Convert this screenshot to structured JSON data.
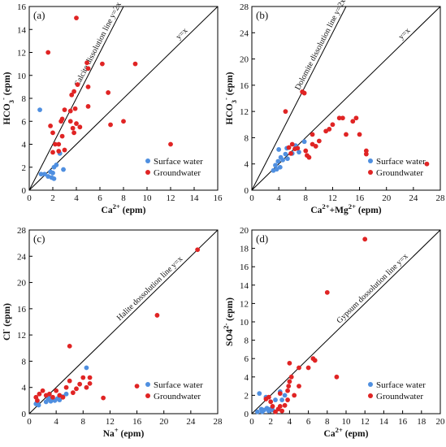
{
  "colors": {
    "surface": "#4f8fe0",
    "ground": "#e02424",
    "axis": "#000000"
  },
  "chart_data": [
    {
      "type": "scatter",
      "panel": "(a)",
      "xlabel": "Ca²⁺ (epm)",
      "ylabel": "HCO₃⁻ (epm)",
      "xlim": [
        0,
        16
      ],
      "ylim": [
        0,
        16
      ],
      "xticks": [
        0,
        2,
        4,
        6,
        8,
        10,
        12,
        14,
        16
      ],
      "yticks": [
        0,
        2,
        4,
        6,
        8,
        10,
        12,
        14,
        16
      ],
      "reference_lines": [
        {
          "label": "Calcite dissolution line y=2x",
          "slope": 2
        },
        {
          "label": "y=x",
          "slope": 1
        }
      ],
      "legend_position": "bottom-right",
      "series": [
        {
          "name": "Surface water",
          "color_key": "surface",
          "points": [
            [
              0.9,
              7.0
            ],
            [
              1.0,
              1.4
            ],
            [
              1.3,
              1.4
            ],
            [
              1.6,
              1.2
            ],
            [
              1.8,
              1.6
            ],
            [
              1.9,
              1.1
            ],
            [
              2.0,
              1.5
            ],
            [
              2.1,
              1.0
            ],
            [
              2.1,
              2.0
            ],
            [
              2.3,
              2.2
            ],
            [
              2.6,
              3.2
            ],
            [
              2.9,
              1.8
            ]
          ]
        },
        {
          "name": "Groundwater",
          "color_key": "ground",
          "points": [
            [
              1.6,
              12.0
            ],
            [
              1.8,
              5.6
            ],
            [
              2.0,
              5.0
            ],
            [
              2.0,
              3.3
            ],
            [
              2.2,
              4.0
            ],
            [
              2.5,
              4.0
            ],
            [
              2.5,
              3.4
            ],
            [
              2.7,
              6.0
            ],
            [
              2.8,
              6.2
            ],
            [
              2.8,
              4.7
            ],
            [
              3.0,
              7.0
            ],
            [
              3.0,
              3.5
            ],
            [
              3.5,
              6.9
            ],
            [
              3.5,
              6.0
            ],
            [
              3.6,
              8.3
            ],
            [
              3.7,
              5.4
            ],
            [
              3.8,
              8.6
            ],
            [
              3.8,
              5.0
            ],
            [
              3.9,
              7.1
            ],
            [
              4.0,
              15.0
            ],
            [
              4.0,
              5.8
            ],
            [
              4.1,
              9.2
            ],
            [
              4.3,
              5.5
            ],
            [
              4.9,
              11.1
            ],
            [
              5.0,
              10.6
            ],
            [
              5.0,
              9.0
            ],
            [
              5.0,
              7.3
            ],
            [
              6.2,
              11.0
            ],
            [
              6.7,
              8.5
            ],
            [
              6.9,
              5.7
            ],
            [
              8.0,
              6.0
            ],
            [
              9.0,
              11.0
            ],
            [
              12.0,
              4.0
            ]
          ]
        }
      ]
    },
    {
      "type": "scatter",
      "panel": "(b)",
      "xlabel": "Ca²⁺+Mg²⁺ (epm)",
      "ylabel": "HCO₃⁻ (epm)",
      "xlim": [
        0,
        28
      ],
      "ylim": [
        0,
        28
      ],
      "xticks": [
        0,
        4,
        8,
        12,
        16,
        20,
        24,
        28
      ],
      "yticks": [
        0,
        4,
        8,
        12,
        16,
        20,
        24,
        28
      ],
      "reference_lines": [
        {
          "label": "Dolomite dissolution line y=2x",
          "slope": 2
        },
        {
          "label": "y=x",
          "slope": 1
        }
      ],
      "legend_position": "bottom-right",
      "series": [
        {
          "name": "Surface water",
          "color_key": "surface",
          "points": [
            [
              3.2,
              3.0
            ],
            [
              3.5,
              3.8
            ],
            [
              3.7,
              3.2
            ],
            [
              3.9,
              4.4
            ],
            [
              4.0,
              6.2
            ],
            [
              4.2,
              3.5
            ],
            [
              4.3,
              5.0
            ],
            [
              4.6,
              4.6
            ],
            [
              5.0,
              5.5
            ],
            [
              5.2,
              6.4
            ],
            [
              5.3,
              4.8
            ],
            [
              6.0,
              5.6
            ],
            [
              6.5,
              6.8
            ],
            [
              7.0,
              5.8
            ],
            [
              7.8,
              7.4
            ]
          ]
        },
        {
          "name": "Groundwater",
          "color_key": "ground",
          "points": [
            [
              5.0,
              12.0
            ],
            [
              5.5,
              6.5
            ],
            [
              5.8,
              5.6
            ],
            [
              6.0,
              7.0
            ],
            [
              6.4,
              6.3
            ],
            [
              6.8,
              6.4
            ],
            [
              7.5,
              15.0
            ],
            [
              7.8,
              14.8
            ],
            [
              8.0,
              6.0
            ],
            [
              8.2,
              5.3
            ],
            [
              8.5,
              5.0
            ],
            [
              9.0,
              7.0
            ],
            [
              9.0,
              8.5
            ],
            [
              9.5,
              6.7
            ],
            [
              10.0,
              7.5
            ],
            [
              11.0,
              9.0
            ],
            [
              11.5,
              9.3
            ],
            [
              12.0,
              10.0
            ],
            [
              13.0,
              11.0
            ],
            [
              13.5,
              11.0
            ],
            [
              14.0,
              8.5
            ],
            [
              15.0,
              10.5
            ],
            [
              15.5,
              11.0
            ],
            [
              16.0,
              8.5
            ],
            [
              17.0,
              6.0
            ],
            [
              17.0,
              5.5
            ],
            [
              26.0,
              4.0
            ]
          ]
        }
      ]
    },
    {
      "type": "scatter",
      "panel": "(c)",
      "xlabel": "Na⁺ (epm)",
      "ylabel": "Cl⁻ (epm)",
      "xlim": [
        0,
        28
      ],
      "ylim": [
        0,
        28
      ],
      "xticks": [
        0,
        4,
        8,
        12,
        16,
        20,
        24,
        28
      ],
      "yticks": [
        0,
        4,
        8,
        12,
        16,
        20,
        24,
        28
      ],
      "reference_lines": [
        {
          "label": "Halite dossolution line y=x",
          "slope": 1
        }
      ],
      "legend_position": "bottom-right",
      "series": [
        {
          "name": "Surface water",
          "color_key": "surface",
          "points": [
            [
              1.0,
              1.5
            ],
            [
              1.2,
              1.8
            ],
            [
              1.4,
              1.3
            ],
            [
              2.5,
              1.8
            ],
            [
              2.8,
              2.2
            ],
            [
              3.0,
              2.4
            ],
            [
              3.2,
              1.9
            ],
            [
              3.5,
              2.2
            ],
            [
              3.8,
              2.0
            ],
            [
              4.2,
              2.3
            ],
            [
              4.5,
              2.1
            ],
            [
              5.0,
              2.6
            ],
            [
              5.5,
              3.0
            ],
            [
              8.5,
              7.0
            ]
          ]
        },
        {
          "name": "Groundwater",
          "color_key": "ground",
          "points": [
            [
              1.0,
              2.5
            ],
            [
              1.2,
              2.0
            ],
            [
              1.5,
              3.0
            ],
            [
              2.0,
              3.5
            ],
            [
              2.5,
              2.8
            ],
            [
              3.0,
              3.0
            ],
            [
              3.5,
              2.5
            ],
            [
              4.0,
              3.5
            ],
            [
              4.5,
              2.8
            ],
            [
              5.0,
              2.5
            ],
            [
              5.5,
              4.0
            ],
            [
              6.0,
              5.0
            ],
            [
              6.0,
              10.3
            ],
            [
              6.5,
              3.2
            ],
            [
              7.0,
              3.8
            ],
            [
              7.5,
              4.5
            ],
            [
              8.0,
              5.5
            ],
            [
              8.5,
              4.0
            ],
            [
              9.0,
              4.6
            ],
            [
              9.0,
              5.5
            ],
            [
              11.0,
              2.4
            ],
            [
              16.0,
              4.2
            ],
            [
              19.0,
              15.0
            ],
            [
              25.0,
              25.0
            ]
          ]
        }
      ]
    },
    {
      "type": "scatter",
      "panel": "(d)",
      "xlabel": "Ca²⁺ (epm)",
      "ylabel": "SO4²⁻ (epm)",
      "xlim": [
        0,
        20
      ],
      "ylim": [
        0,
        20
      ],
      "xticks": [
        0,
        2,
        4,
        6,
        8,
        10,
        12,
        14,
        16,
        18,
        20
      ],
      "yticks": [
        0,
        2,
        4,
        6,
        8,
        10,
        12,
        14,
        16,
        18,
        20
      ],
      "reference_lines": [
        {
          "label": "Gypsum dossolution line y=x",
          "slope": 1
        }
      ],
      "legend_position": "bottom-right",
      "series": [
        {
          "name": "Surface water",
          "color_key": "surface",
          "points": [
            [
              0.6,
              0.2
            ],
            [
              0.8,
              2.2
            ],
            [
              1.0,
              0.5
            ],
            [
              1.1,
              0.2
            ],
            [
              1.3,
              0.4
            ],
            [
              1.5,
              1.8
            ],
            [
              1.6,
              0.6
            ],
            [
              1.8,
              0.3
            ],
            [
              2.0,
              0.5
            ],
            [
              2.2,
              0.4
            ],
            [
              2.5,
              1.5
            ],
            [
              3.0,
              2.4
            ],
            [
              3.2,
              1.5
            ],
            [
              3.5,
              2.0
            ]
          ]
        },
        {
          "name": "Groundwater",
          "color_key": "ground",
          "points": [
            [
              1.5,
              1.6
            ],
            [
              1.8,
              1.8
            ],
            [
              2.0,
              1.3
            ],
            [
              2.2,
              0.8
            ],
            [
              2.5,
              0.2
            ],
            [
              2.8,
              0.5
            ],
            [
              3.0,
              0.8
            ],
            [
              3.0,
              2.2
            ],
            [
              3.2,
              0.3
            ],
            [
              3.5,
              0.9
            ],
            [
              3.8,
              1.5
            ],
            [
              3.8,
              2.5
            ],
            [
              3.9,
              3.0
            ],
            [
              4.0,
              5.5
            ],
            [
              4.0,
              3.5
            ],
            [
              4.2,
              4.0
            ],
            [
              4.5,
              2.0
            ],
            [
              5.0,
              5.0
            ],
            [
              5.0,
              3.0
            ],
            [
              6.0,
              5.0
            ],
            [
              6.5,
              6.0
            ],
            [
              6.7,
              5.8
            ],
            [
              8.0,
              13.2
            ],
            [
              9.0,
              4.0
            ],
            [
              12.0,
              19.0
            ]
          ]
        }
      ]
    }
  ]
}
